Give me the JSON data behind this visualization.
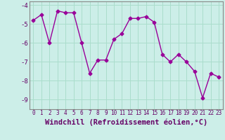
{
  "x": [
    0,
    1,
    2,
    3,
    4,
    5,
    6,
    7,
    8,
    9,
    10,
    11,
    12,
    13,
    14,
    15,
    16,
    17,
    18,
    19,
    20,
    21,
    22,
    23
  ],
  "y": [
    -4.8,
    -4.5,
    -6.0,
    -4.3,
    -4.4,
    -4.4,
    -6.0,
    -7.6,
    -6.9,
    -6.9,
    -5.8,
    -5.5,
    -4.7,
    -4.7,
    -4.6,
    -4.9,
    -6.6,
    -7.0,
    -6.6,
    -7.0,
    -7.5,
    -8.9,
    -7.6,
    -7.8
  ],
  "line_color": "#990099",
  "marker": "D",
  "marker_size": 2.5,
  "background_color": "#cceee8",
  "grid_color": "#aaddcc",
  "xlabel": "Windchill (Refroidissement éolien,°C)",
  "ylim": [
    -9.5,
    -3.8
  ],
  "yticks": [
    -9,
    -8,
    -7,
    -6,
    -5,
    -4
  ],
  "xticks": [
    0,
    1,
    2,
    3,
    4,
    5,
    6,
    7,
    8,
    9,
    10,
    11,
    12,
    13,
    14,
    15,
    16,
    17,
    18,
    19,
    20,
    21,
    22,
    23
  ],
  "xlabel_color": "#660066",
  "tick_color": "#660066",
  "spine_color": "#888888",
  "xlabel_fontsize": 7.5,
  "xtick_fontsize": 5.5,
  "ytick_fontsize": 6.5
}
